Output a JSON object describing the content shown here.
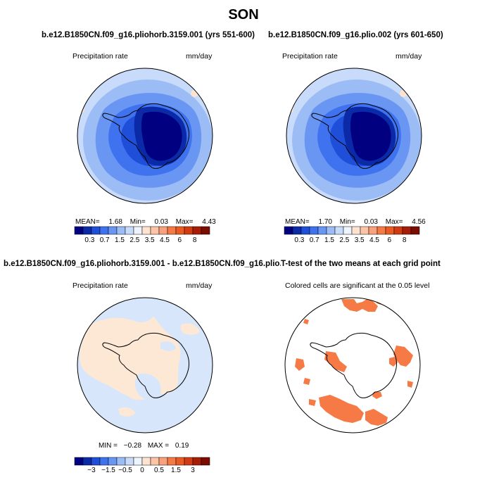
{
  "title": "SON",
  "colors": {
    "deep_blue": "#0a1e96",
    "blue": "#2b57e8",
    "mid_blue": "#5f8af2",
    "light_blue": "#9dbdf6",
    "pale_blue": "#d7e6fb",
    "pale_orange": "#fde8d6",
    "orange": "#f57a45",
    "outline": "#000000"
  },
  "panels": [
    {
      "title": "b.e12.B1850CN.f09_g16.pliohorb.3159.001 (yrs 551-600)",
      "variable": "Precipitation rate",
      "units": "mm/day",
      "stats": {
        "mean_label": "MEAN=",
        "mean": "1.68",
        "min_label": "Min=",
        "min": "0.03",
        "max_label": "Max=",
        "max": "4.43"
      },
      "colorbar_ticks": [
        "0.3",
        "0.7",
        "1.5",
        "2.5",
        "3.5",
        "4.5",
        "6",
        "8"
      ]
    },
    {
      "title": "b.e12.B1850CN.f09_g16.plio.002 (yrs 601-650)",
      "variable": "Precipitation rate",
      "units": "mm/day",
      "stats": {
        "mean_label": "MEAN=",
        "mean": "1.70",
        "min_label": "Min=",
        "min": "0.03",
        "max_label": "Max=",
        "max": "4.56"
      },
      "colorbar_ticks": [
        "0.3",
        "0.7",
        "1.5",
        "2.5",
        "3.5",
        "4.5",
        "6",
        "8"
      ]
    },
    {
      "title": "b.e12.B1850CN.f09_g16.pliohorb.3159.001 - b.e12.B1850CN.f09_g16.plio.002",
      "variable": "Precipitation rate",
      "units": "mm/day",
      "stats": {
        "min_label": "MIN =",
        "min": "−0.28",
        "max_label": "MAX =",
        "max": "0.19"
      },
      "colorbar_ticks": [
        "−3",
        "−1.5",
        "−0.5",
        "0",
        "0.5",
        "1.5",
        "3"
      ]
    },
    {
      "title": "T-test of the two means at each grid point",
      "subtitle": "Colored cells are significant at the 0.05 level"
    }
  ],
  "colorbar_abs": [
    "#000080",
    "#0a2aa8",
    "#1f4fd8",
    "#3f72ee",
    "#6a96f3",
    "#9cbcf6",
    "#c8dbfa",
    "#eef4fd",
    "#fde3d0",
    "#fbc4a6",
    "#f9a07c",
    "#f57a45",
    "#ea5a22",
    "#d23a12",
    "#a81d08",
    "#7a0c02"
  ],
  "colorbar_diff": [
    "#000080",
    "#0a2aa8",
    "#1f4fd8",
    "#3f72ee",
    "#6a96f3",
    "#9cbcf6",
    "#c8dbfa",
    "#eef4fd",
    "#fde3d0",
    "#fbc4a6",
    "#f9a07c",
    "#f57a45",
    "#ea5a22",
    "#d23a12",
    "#a81d08",
    "#7a0c02"
  ]
}
